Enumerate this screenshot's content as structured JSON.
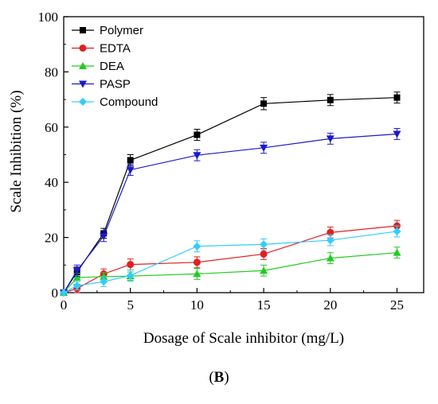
{
  "chart_data": {
    "type": "line",
    "xlabel": "Dosage of Scale inhibitor (mg/L)",
    "ylabel": "Scale Inhibition (%)",
    "xlim": [
      0,
      27
    ],
    "ylim": [
      0,
      100
    ],
    "xticks": [
      0,
      5,
      10,
      15,
      20,
      25
    ],
    "yticks": [
      0,
      20,
      40,
      60,
      80,
      100
    ],
    "legend_position": "top-left",
    "grid": false,
    "series": [
      {
        "name": "Polymer",
        "color": "#000000",
        "marker": "square",
        "x": [
          0,
          1,
          3,
          5,
          10,
          15,
          20,
          25
        ],
        "y": [
          0,
          7.5,
          21.5,
          48,
          57.2,
          68.5,
          69.8,
          70.7
        ],
        "err": [
          0,
          1.8,
          1.8,
          2,
          2,
          2.2,
          2,
          2
        ]
      },
      {
        "name": "EDTA",
        "color": "#e02020",
        "marker": "circle",
        "x": [
          0,
          1,
          3,
          5,
          10,
          15,
          20,
          25
        ],
        "y": [
          0,
          1.5,
          6.8,
          10.2,
          11,
          14,
          21.8,
          24.2
        ],
        "err": [
          0,
          1.5,
          1.8,
          2,
          2,
          2,
          2,
          2
        ]
      },
      {
        "name": "DEA",
        "color": "#22cc22",
        "marker": "triangle-up",
        "x": [
          0,
          1,
          3,
          5,
          10,
          15,
          20,
          25
        ],
        "y": [
          0,
          5.5,
          5.8,
          6,
          6.8,
          8,
          12.5,
          14.5
        ],
        "err": [
          0,
          1.5,
          1.5,
          1.5,
          2,
          2,
          2,
          2
        ]
      },
      {
        "name": "PASP",
        "color": "#1a1acc",
        "marker": "triangle-down",
        "x": [
          0,
          1,
          3,
          5,
          10,
          15,
          20,
          25
        ],
        "y": [
          0,
          8,
          20.5,
          44.5,
          49.8,
          52.5,
          55.8,
          57.5
        ],
        "err": [
          0,
          2,
          2,
          2,
          2,
          2,
          2,
          2
        ]
      },
      {
        "name": "Compound",
        "color": "#33ccff",
        "marker": "diamond",
        "x": [
          0,
          1,
          3,
          5,
          10,
          15,
          20,
          25
        ],
        "y": [
          0,
          2.5,
          4,
          6.2,
          16.8,
          17.5,
          19,
          22.2
        ],
        "err": [
          0,
          1.5,
          1.8,
          2,
          2,
          2,
          2,
          2
        ]
      }
    ]
  },
  "panel_label": "B"
}
